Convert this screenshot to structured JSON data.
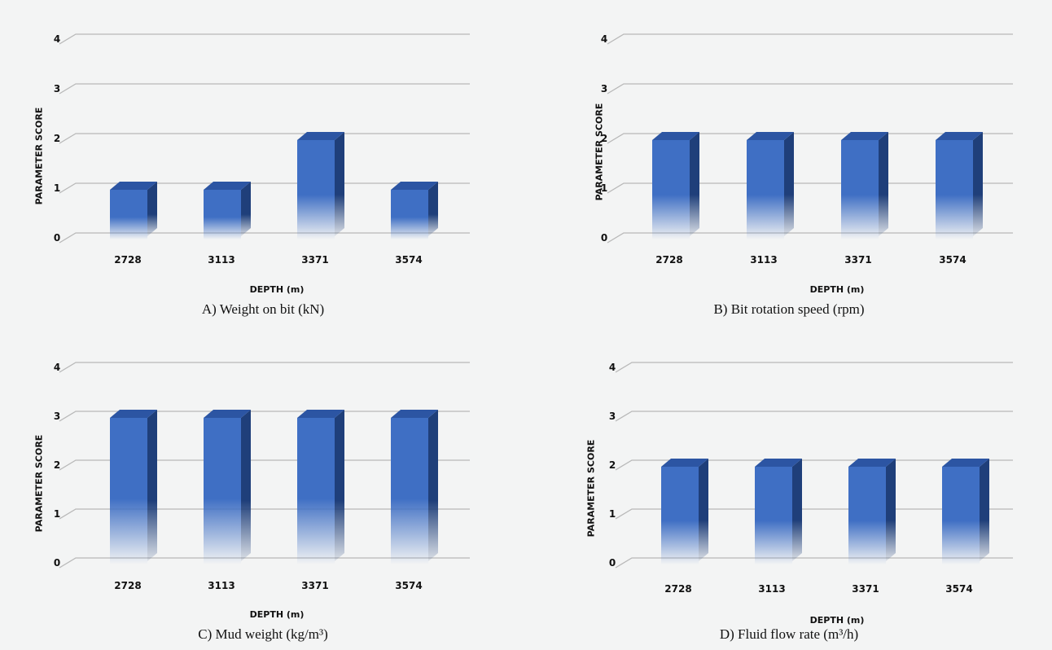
{
  "chart_data": [
    {
      "type": "bar",
      "caption": "A) Weight on bit (kN)",
      "xlabel": "DEPTH (m)",
      "ylabel": "PARAMETER SCORE",
      "categories": [
        "2728",
        "3113",
        "3371",
        "3574"
      ],
      "values": [
        1,
        1,
        2,
        1
      ],
      "yticks": [
        "0",
        "1",
        "2",
        "3",
        "4"
      ],
      "ylim": [
        0,
        4
      ],
      "grid": true
    },
    {
      "type": "bar",
      "caption": "B) Bit rotation speed (rpm)",
      "xlabel": "DEPTH (m)",
      "ylabel": "PARAMETER SCORE",
      "categories": [
        "2728",
        "3113",
        "3371",
        "3574"
      ],
      "values": [
        2,
        2,
        2,
        2
      ],
      "yticks": [
        "0",
        "1",
        "2",
        "3",
        "4"
      ],
      "ylim": [
        0,
        4
      ],
      "grid": true
    },
    {
      "type": "bar",
      "caption": "C) Mud weight (kg/m³)",
      "xlabel": "DEPTH (m)",
      "ylabel": "PARAMETER SCORE",
      "categories": [
        "2728",
        "3113",
        "3371",
        "3574"
      ],
      "values": [
        3,
        3,
        3,
        3
      ],
      "yticks": [
        "0",
        "1",
        "2",
        "3",
        "4"
      ],
      "ylim": [
        0,
        4
      ],
      "grid": true
    },
    {
      "type": "bar",
      "caption": "D) Fluid flow rate (m³/h)",
      "xlabel": "DEPTH (m)",
      "ylabel": "PARAMETER SCORE",
      "categories": [
        "2728",
        "3113",
        "3371",
        "3574"
      ],
      "values": [
        2,
        2,
        2,
        2
      ],
      "yticks": [
        "0",
        "1",
        "2",
        "3",
        "4"
      ],
      "ylim": [
        0,
        4
      ],
      "grid": true
    }
  ],
  "colors": {
    "bar_front": "#3f6fc4",
    "bar_side": "#1f3f7a",
    "bar_top": "#2c55a3",
    "grid": "#b8b8b8"
  }
}
